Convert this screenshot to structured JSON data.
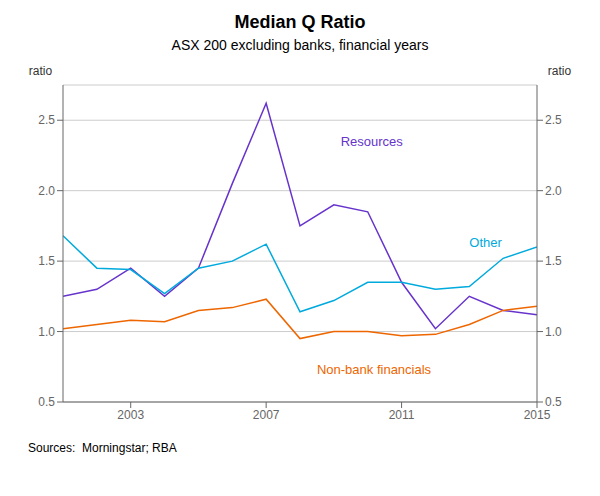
{
  "chart_data": {
    "type": "line",
    "title": "Median Q Ratio",
    "subtitle": "ASX 200 excluding banks, financial years",
    "y_label": "ratio",
    "y2_label": "ratio",
    "source": "Sources:  Morningstar; RBA",
    "x": [
      2001,
      2002,
      2003,
      2004,
      2005,
      2006,
      2007,
      2008,
      2009,
      2010,
      2011,
      2012,
      2013,
      2014,
      2015
    ],
    "xlim": [
      2001,
      2015
    ],
    "xticks": [
      2003,
      2007,
      2011,
      2015
    ],
    "ylim": [
      0.5,
      2.75
    ],
    "yticks": [
      0.5,
      {
        "value": 1.0,
        "label": "1.0"
      },
      1.5,
      {
        "value": 2.0,
        "label": "2.0"
      },
      2.5
    ],
    "y2lim": [
      0.5,
      2.75
    ],
    "y2ticks": [
      0.5,
      {
        "value": 1.0,
        "label": "1.0"
      },
      1.5,
      {
        "value": 2.0,
        "label": "2.0"
      },
      2.5
    ],
    "grid": true,
    "series": [
      {
        "name": "Resources",
        "color": "#6633cc",
        "values": [
          1.25,
          1.3,
          1.45,
          1.25,
          1.45,
          2.05,
          2.62,
          1.75,
          1.9,
          1.85,
          1.35,
          1.02,
          1.25,
          1.15,
          1.12
        ]
      },
      {
        "name": "Other",
        "color": "#00aadd",
        "values": [
          1.68,
          1.45,
          1.44,
          1.27,
          1.45,
          1.5,
          1.62,
          1.14,
          1.22,
          1.35,
          1.35,
          1.3,
          1.32,
          1.52,
          1.6
        ]
      },
      {
        "name": "Non-bank financials",
        "color": "#ee6600",
        "values": [
          1.02,
          1.05,
          1.08,
          1.07,
          1.15,
          1.17,
          1.23,
          0.95,
          1.0,
          1.0,
          0.97,
          0.98,
          1.05,
          1.15,
          1.18
        ]
      }
    ],
    "annotations": [
      {
        "text": "Resources",
        "x": 2009.2,
        "y": 2.32
      },
      {
        "text": "Other",
        "x": 2013.0,
        "y": 1.6
      },
      {
        "text": "Non-bank financials",
        "x": 2008.5,
        "y": 0.7
      }
    ]
  }
}
